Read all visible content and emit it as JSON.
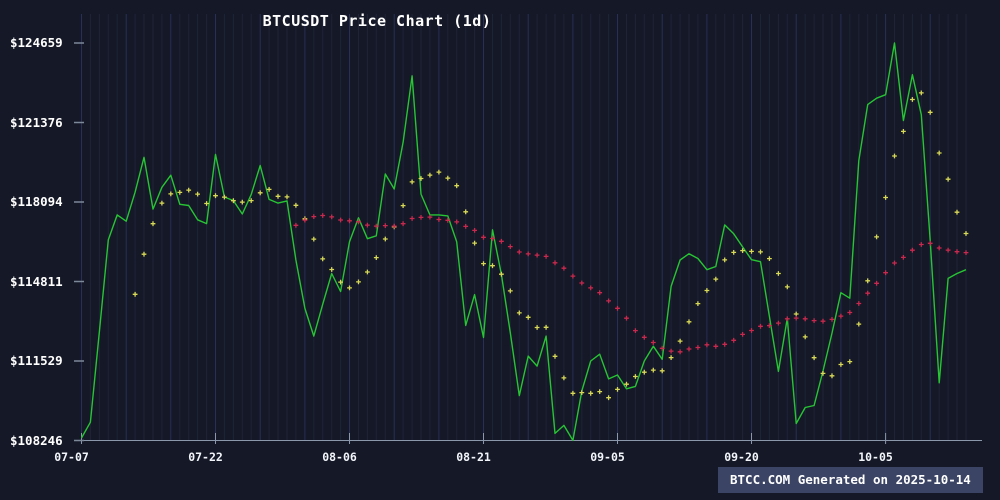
{
  "title": "BTCUSDT Price Chart (1d)",
  "watermark": "BTCC.COM Generated on 2025-10-14",
  "chart_data": {
    "type": "line",
    "symbol": "BTCUSDT",
    "interval": "1d",
    "start_date": "2025-07-07",
    "end_date": "2025-10-14",
    "title": "BTCUSDT Price Chart (1d)",
    "grid": "vertical-daily, accent every 5th day",
    "legend_position": "none",
    "x_tick_labels": [
      "07-07",
      "07-22",
      "08-06",
      "08-21",
      "09-05",
      "09-20",
      "10-05"
    ],
    "x_tick_day_indices": [
      0,
      15,
      30,
      45,
      60,
      75,
      90
    ],
    "y_tick_labels": [
      "$124659",
      "$121376",
      "$118094",
      "$114811",
      "$111529",
      "$108246"
    ],
    "y_axis": {
      "min": 108246,
      "max": 124659
    },
    "series": [
      {
        "name": "price",
        "type": "line",
        "color": "#27c434",
        "values": [
          108350,
          109000,
          112750,
          116530,
          117560,
          117300,
          118500,
          119940,
          117800,
          118700,
          119200,
          118000,
          117950,
          117360,
          117200,
          120060,
          118300,
          118150,
          117600,
          118400,
          119600,
          118200,
          118050,
          118140,
          115700,
          113700,
          112555,
          113870,
          115140,
          114400,
          116450,
          117440,
          116580,
          116700,
          119250,
          118630,
          120560,
          123305,
          118420,
          117560,
          117560,
          117520,
          116450,
          113000,
          114270,
          112500,
          116945,
          115100,
          112700,
          110100,
          111730,
          111320,
          112555,
          108540,
          108870,
          108250,
          110290,
          111530,
          111810,
          110790,
          110950,
          110380,
          110480,
          111530,
          112140,
          111600,
          114610,
          115700,
          115960,
          115760,
          115300,
          115430,
          117150,
          116780,
          116240,
          115710,
          115630,
          113370,
          111100,
          113290,
          108950,
          109610,
          109690,
          111115,
          112680,
          114350,
          114120,
          119800,
          122115,
          122380,
          122525,
          124659,
          121460,
          123350,
          121700,
          116500,
          110630,
          114940,
          115140,
          115300
        ]
      },
      {
        "name": "ma7",
        "type": "scatter-cross",
        "color": "#d8d957",
        "derived_from": "price",
        "window": 7
      },
      {
        "name": "ma25",
        "type": "scatter-cross",
        "color": "#c9294e",
        "derived_from": "price",
        "window": 25
      }
    ],
    "colors": {
      "background": "#151827",
      "grid": "#1e2336",
      "grid_accent": "#293055",
      "axis": "#8b97ab",
      "text": "#ffffff",
      "watermark_bg": "#3b4464"
    }
  }
}
